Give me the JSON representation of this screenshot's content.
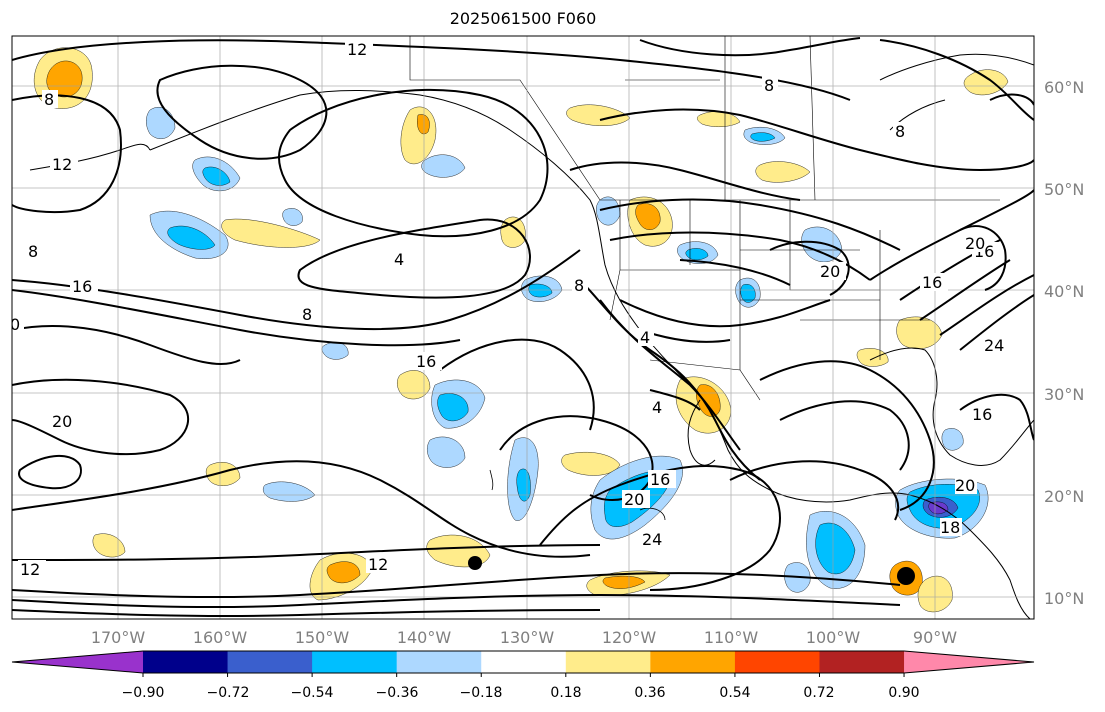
{
  "title": "2025061500 F060",
  "latitude_labels": [
    "60°N",
    "50°N",
    "40°N",
    "30°N",
    "20°N",
    "10°N"
  ],
  "longitude_labels": [
    "170°W",
    "160°W",
    "150°W",
    "140°W",
    "130°W",
    "120°W",
    "110°W",
    "100°W",
    "90°W"
  ],
  "colorbar": {
    "ticks": [
      "−0.90",
      "−0.72",
      "−0.54",
      "−0.36",
      "−0.18",
      "0.18",
      "0.36",
      "0.54",
      "0.72",
      "0.90"
    ],
    "colors": [
      "#9932cc",
      "#00008b",
      "#3a5fcd",
      "#00bfff",
      "#add8ff",
      "#ffffff",
      "#ffec8b",
      "#ffa500",
      "#ff4500",
      "#b22222",
      "#ff88aa"
    ]
  },
  "contour_labels": [
    "12",
    "8",
    "12",
    "8",
    "8",
    "8",
    "4",
    "16",
    "8",
    "0",
    "16",
    "20",
    "8",
    "4",
    "16",
    "4",
    "20",
    "16",
    "24",
    "16",
    "20",
    "24",
    "12",
    "12",
    "20",
    "16",
    "20",
    "18"
  ],
  "colors": {
    "positive_light": "#ffec8b",
    "positive_mid": "#ffa500",
    "negative_light": "#add8ff",
    "negative_mid": "#00bfff",
    "negative_dark": "#3a5fcd",
    "negative_darker": "#6a3acd"
  }
}
